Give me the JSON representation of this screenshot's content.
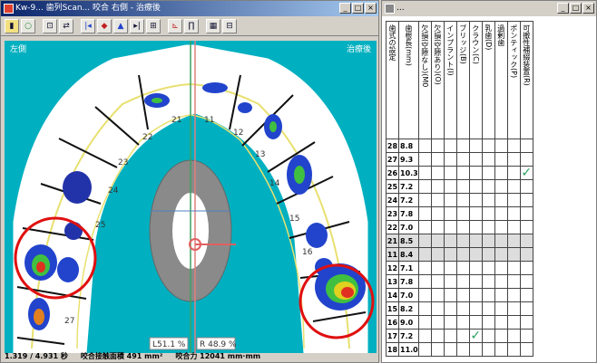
{
  "left_window": {
    "title": "Kw-9... 歯列Scan... 咬合 右側 - 治療後",
    "canvas": {
      "left_label": "左側",
      "right_label": "治療後"
    },
    "tooth_numbers": [
      "21",
      "22",
      "23",
      "24",
      "25",
      "27",
      "11",
      "12",
      "13",
      "14",
      "15",
      "16"
    ],
    "bottom_left_pct": "L51.1 %",
    "bottom_right_pct": "R 48.9 %",
    "status": {
      "coords": "1.319 / 4.931 秒",
      "area": "咬合接触面積 491 mm²",
      "value": "咬合力 12041 mm·mm"
    }
  },
  "right_window": {
    "title": "...",
    "col_headers": [
      "歯式の設定",
      "歯根長(mm)",
      "欠損(空隙なし)(M0",
      "欠損(空隙あり)(O)",
      "インプラント(I)",
      "ブリッジ(B)",
      "クラウン(C)",
      "乳歯(D)",
      "過剰歯",
      "ポンティック(P)",
      "可撤性補綴装置(R)"
    ],
    "rows": [
      {
        "tooth": "28",
        "len": "8.8",
        "checks": []
      },
      {
        "tooth": "27",
        "len": "9.3",
        "checks": []
      },
      {
        "tooth": "26",
        "len": "10.3",
        "checks": [
          8
        ]
      },
      {
        "tooth": "25",
        "len": "7.2",
        "checks": []
      },
      {
        "tooth": "24",
        "len": "7.2",
        "checks": []
      },
      {
        "tooth": "23",
        "len": "7.8",
        "checks": []
      },
      {
        "tooth": "22",
        "len": "7.0",
        "checks": []
      },
      {
        "tooth": "21",
        "len": "8.5",
        "checks": []
      },
      {
        "tooth": "11",
        "len": "8.4",
        "checks": []
      },
      {
        "tooth": "12",
        "len": "7.1",
        "checks": []
      },
      {
        "tooth": "13",
        "len": "7.8",
        "checks": []
      },
      {
        "tooth": "14",
        "len": "7.0",
        "checks": []
      },
      {
        "tooth": "15",
        "len": "8.2",
        "checks": []
      },
      {
        "tooth": "16",
        "len": "9.0",
        "checks": []
      },
      {
        "tooth": "17",
        "len": "7.2",
        "checks": [
          4
        ]
      },
      {
        "tooth": "18",
        "len": "11.0",
        "checks": []
      }
    ],
    "check_glyph": "✓"
  },
  "icons": [
    "app-icon",
    "open-icon",
    "save-icon",
    "print-icon",
    "play-icon",
    "stop-icon",
    "graph-icon",
    "settings-icon"
  ]
}
